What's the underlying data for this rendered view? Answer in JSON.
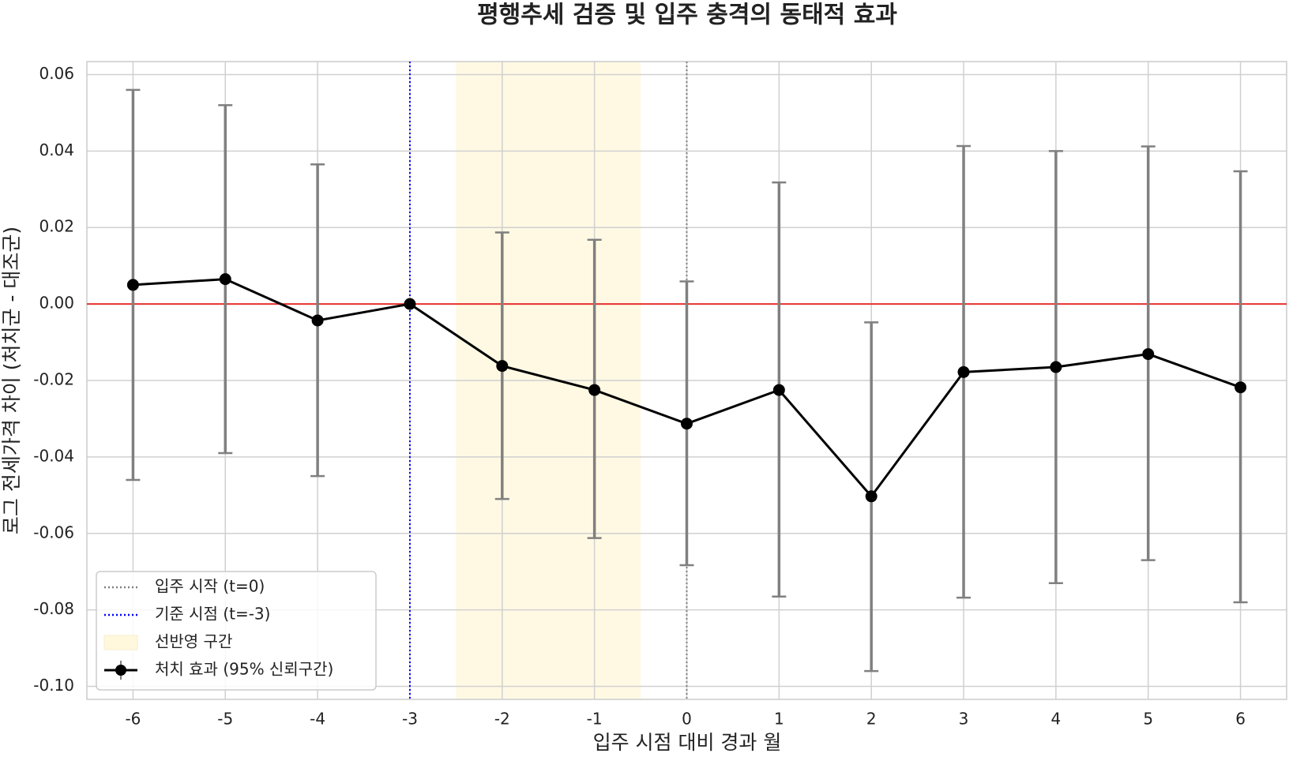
{
  "chart_data": {
    "type": "errorbar-line",
    "title": "평행추세 검증 및 입주 충격의 동태적 효과",
    "x_label": "입주 시점 대비 경과 월",
    "y_label": "로그 전세가격 차이 (처치군 - 대조군)",
    "x": [
      -6,
      -5,
      -4,
      -3,
      -2,
      -1,
      0,
      1,
      2,
      3,
      4,
      5,
      6
    ],
    "series": [
      {
        "name": "처치 효과 (95% 신뢰구간)",
        "color": "#000000",
        "error_color": "#808080",
        "values": [
          0.005,
          0.0065,
          -0.0043,
          0,
          -0.0162,
          -0.0225,
          -0.0313,
          -0.0225,
          -0.0503,
          -0.0178,
          -0.0165,
          -0.0131,
          -0.0218
        ],
        "lower": [
          -0.046,
          -0.039,
          -0.045,
          null,
          -0.051,
          -0.0612,
          -0.0683,
          -0.0765,
          -0.096,
          -0.0768,
          -0.073,
          -0.067,
          -0.078
        ],
        "upper": [
          0.056,
          0.052,
          0.0365,
          null,
          0.0187,
          0.0168,
          0.0059,
          0.0318,
          -0.0048,
          0.0413,
          0.04,
          0.0412,
          0.0347
        ]
      }
    ],
    "vlines": [
      {
        "name": "입주 시작 (t=0)",
        "x": 0,
        "color": "#808080"
      },
      {
        "name": "기준 시점 (t=-3)",
        "x": -3,
        "color": "#0000ff"
      }
    ],
    "span": {
      "name": "선반영 구간",
      "from": -2.5,
      "to": -0.5,
      "color": "#fff8dc"
    },
    "hline": {
      "y": 0,
      "color": "#e8312f"
    },
    "xlim": [
      -6.5,
      6.5
    ],
    "xticks": [
      -6,
      -5,
      -4,
      -3,
      -2,
      -1,
      0,
      1,
      2,
      3,
      4,
      5,
      6
    ],
    "ylim": [
      -0.1034,
      0.0634
    ],
    "yticks": [
      {
        "value": -0.1,
        "label": "-0.10"
      },
      -0.08,
      -0.06,
      -0.04,
      -0.02,
      {
        "value": 0,
        "label": "0.00"
      },
      0.02,
      0.04,
      0.06
    ],
    "grid": true,
    "legend": "lower left"
  }
}
